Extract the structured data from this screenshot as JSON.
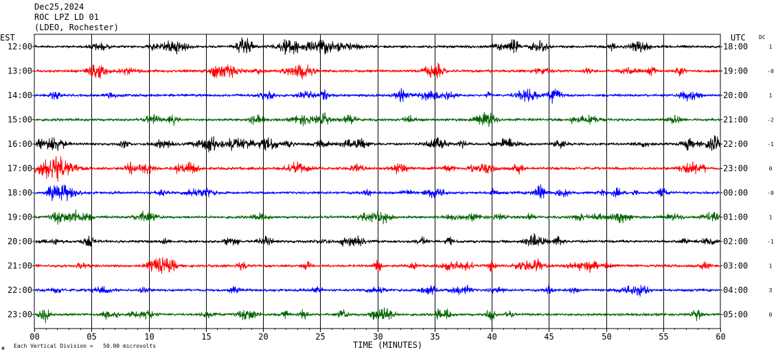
{
  "header": {
    "date": "Dec25,2024",
    "station": "ROC LPZ LD 01",
    "network": "(LDEO, Rochester)"
  },
  "labels": {
    "left_zone": "EST",
    "right_zone": "UTC",
    "dc": "DC",
    "scale_note": "Each Vertical Division =   50.00 microvolts",
    "scale_prefix": "ж"
  },
  "chart_data": {
    "type": "line",
    "xlabel": "TIME (MINUTES)",
    "xlim": [
      0,
      60
    ],
    "x_ticks": [
      "00",
      "05",
      "10",
      "15",
      "20",
      "25",
      "30",
      "35",
      "40",
      "45",
      "50",
      "55",
      "60"
    ],
    "grid": "vertical lines every 5 minutes",
    "trace_colors": [
      "#000000",
      "#ff0000",
      "#0000ff",
      "#006400"
    ],
    "rows": [
      {
        "est": "12:00",
        "utc": "18:00",
        "dc": "1"
      },
      {
        "est": "13:00",
        "utc": "19:00",
        "dc": "-0"
      },
      {
        "est": "14:00",
        "utc": "20:00",
        "dc": "1"
      },
      {
        "est": "15:00",
        "utc": "21:00",
        "dc": "-2"
      },
      {
        "est": "16:00",
        "utc": "22:00",
        "dc": "-1"
      },
      {
        "est": "17:00",
        "utc": "23:00",
        "dc": "0"
      },
      {
        "est": "18:00",
        "utc": "00:00",
        "dc": "-0"
      },
      {
        "est": "19:00",
        "utc": "01:00",
        "dc": "1"
      },
      {
        "est": "20:00",
        "utc": "02:00",
        "dc": "-1"
      },
      {
        "est": "21:00",
        "utc": "03:00",
        "dc": "1"
      },
      {
        "est": "22:00",
        "utc": "04:00",
        "dc": "3"
      },
      {
        "est": "23:00",
        "utc": "05:00",
        "dc": "0"
      }
    ]
  }
}
